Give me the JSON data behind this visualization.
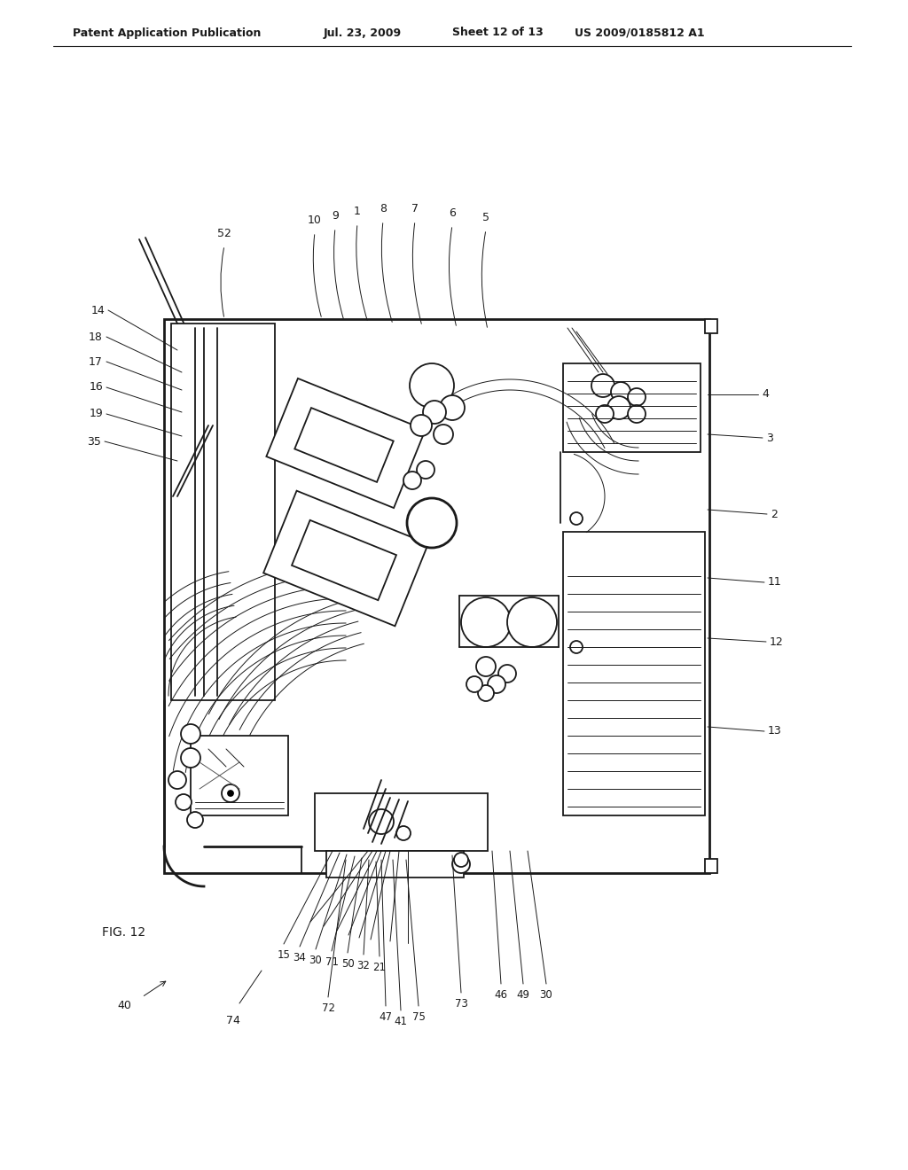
{
  "bg_color": "#ffffff",
  "header_text": "Patent Application Publication",
  "header_date": "Jul. 23, 2009",
  "header_sheet": "Sheet 12 of 13",
  "header_patent": "US 2009/0185812 A1",
  "fig_label": "FIG. 12",
  "lc": "#1a1a1a",
  "lw": 1.3,
  "lw_thin": 0.7,
  "lw_thick": 2.0
}
